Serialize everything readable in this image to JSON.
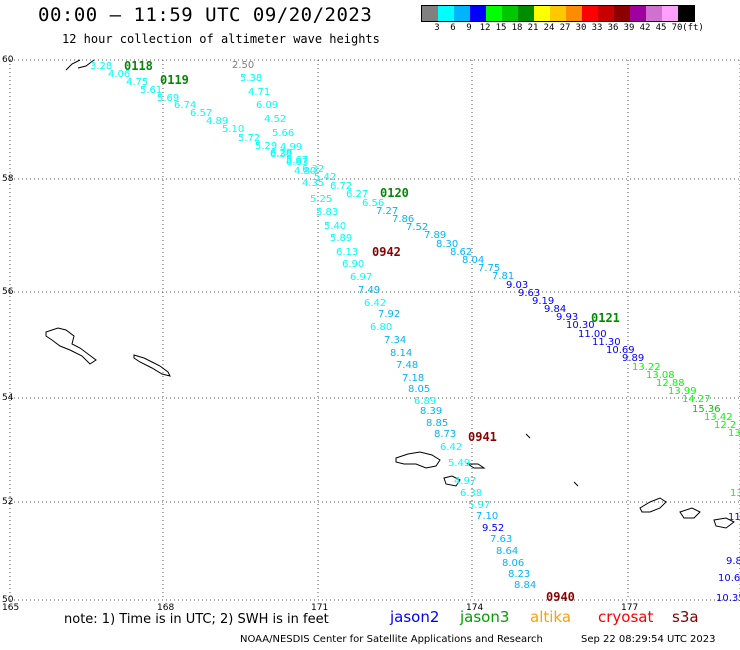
{
  "header": {
    "title": "00:00 — 11:59 UTC 09/20/2023",
    "subtitle": "12 hour collection of altimeter wave heights"
  },
  "legend": {
    "unit": "(ft)",
    "labels": [
      "3",
      "6",
      "9",
      "12",
      "15",
      "18",
      "21",
      "24",
      "27",
      "30",
      "33",
      "36",
      "39",
      "42",
      "45",
      "70"
    ],
    "colors": [
      "#808080",
      "#00ffff",
      "#00b4ff",
      "#0000ff",
      "#00ff00",
      "#00c800",
      "#008c00",
      "#ffff00",
      "#ffc800",
      "#ff8c00",
      "#ff0000",
      "#c80000",
      "#8c0000",
      "#a000a0",
      "#d070d0",
      "#ffa0ff",
      "#000000"
    ]
  },
  "axes": {
    "lat_labels": [
      "60",
      "58",
      "56",
      "54",
      "52",
      "50"
    ],
    "lon_labels": [
      "165",
      "168",
      "171",
      "174",
      "177"
    ]
  },
  "passes": [
    {
      "label": "0118",
      "color": "#008c00"
    },
    {
      "label": "0119",
      "color": "#008c00"
    },
    {
      "label": "0120",
      "color": "#008c00"
    },
    {
      "label": "0121",
      "color": "#008c00"
    },
    {
      "label": "0942",
      "color": "#8c0000"
    },
    {
      "label": "0941",
      "color": "#8c0000"
    },
    {
      "label": "0940",
      "color": "#8c0000"
    }
  ],
  "points": {
    "track_a": [
      {
        "v": "3.28",
        "c": "#00ffff"
      },
      {
        "v": "4.06",
        "c": "#00ffff"
      },
      {
        "v": "4.75",
        "c": "#00ffff"
      },
      {
        "v": "5.61",
        "c": "#00ffff"
      },
      {
        "v": "5.69",
        "c": "#00ffff"
      },
      {
        "v": "6.74",
        "c": "#00ffff"
      },
      {
        "v": "6.57",
        "c": "#00ffff"
      },
      {
        "v": "4.89",
        "c": "#00ffff"
      },
      {
        "v": "5.10",
        "c": "#00ffff"
      },
      {
        "v": "5.72",
        "c": "#00ffff"
      },
      {
        "v": "5.29",
        "c": "#00ffff"
      },
      {
        "v": "6.39",
        "c": "#00ffff"
      },
      {
        "v": "6.63",
        "c": "#00ffff"
      },
      {
        "v": "6.32",
        "c": "#00ffff"
      },
      {
        "v": "5.42",
        "c": "#00ffff"
      },
      {
        "v": "6.72",
        "c": "#00ffff"
      },
      {
        "v": "6.27",
        "c": "#00ffff"
      },
      {
        "v": "6.56",
        "c": "#00ffff"
      },
      {
        "v": "7.27",
        "c": "#00b4ff"
      },
      {
        "v": "7.86",
        "c": "#00b4ff"
      },
      {
        "v": "7.52",
        "c": "#00b4ff"
      },
      {
        "v": "7.89",
        "c": "#00b4ff"
      },
      {
        "v": "8.30",
        "c": "#00b4ff"
      },
      {
        "v": "8.62",
        "c": "#00b4ff"
      },
      {
        "v": "8.04",
        "c": "#00b4ff"
      },
      {
        "v": "7.75",
        "c": "#00b4ff"
      },
      {
        "v": "7.81",
        "c": "#00b4ff"
      },
      {
        "v": "9.03",
        "c": "#0000ff"
      },
      {
        "v": "9.63",
        "c": "#0000ff"
      },
      {
        "v": "9.19",
        "c": "#0000ff"
      },
      {
        "v": "9.84",
        "c": "#0000ff"
      },
      {
        "v": "9.93",
        "c": "#0000ff"
      },
      {
        "v": "10.30",
        "c": "#0000ff"
      },
      {
        "v": "11.00",
        "c": "#0000ff"
      },
      {
        "v": "11.30",
        "c": "#0000ff"
      },
      {
        "v": "10.69",
        "c": "#0000ff"
      },
      {
        "v": "9.89",
        "c": "#0000ff"
      },
      {
        "v": "13.22",
        "c": "#00ff00"
      },
      {
        "v": "13.08",
        "c": "#00ff00"
      },
      {
        "v": "12.88",
        "c": "#00ff00"
      },
      {
        "v": "13.99",
        "c": "#00ff00"
      },
      {
        "v": "14.27",
        "c": "#00ff00"
      },
      {
        "v": "15.36",
        "c": "#00c800"
      },
      {
        "v": "13.42",
        "c": "#00ff00"
      },
      {
        "v": "12.2",
        "c": "#00ff00"
      },
      {
        "v": "13",
        "c": "#00ff00"
      }
    ],
    "track_b": [
      {
        "v": "2.50",
        "c": "#808080"
      },
      {
        "v": "5.38",
        "c": "#00ffff"
      },
      {
        "v": "4.71",
        "c": "#00ffff"
      },
      {
        "v": "6.09",
        "c": "#00ffff"
      },
      {
        "v": "4.52",
        "c": "#00ffff"
      },
      {
        "v": "5.66",
        "c": "#00ffff"
      },
      {
        "v": "4.99",
        "c": "#00ffff"
      },
      {
        "v": "6.28",
        "c": "#00ffff"
      },
      {
        "v": "5.67",
        "c": "#00ffff"
      },
      {
        "v": "4.80",
        "c": "#00ffff"
      },
      {
        "v": "4.35",
        "c": "#00ffff"
      },
      {
        "v": "5.25",
        "c": "#00ffff"
      },
      {
        "v": "5.83",
        "c": "#00ffff"
      },
      {
        "v": "5.40",
        "c": "#00ffff"
      },
      {
        "v": "5.89",
        "c": "#00ffff"
      },
      {
        "v": "6.13",
        "c": "#00ffff"
      },
      {
        "v": "6.90",
        "c": "#00ffff"
      },
      {
        "v": "6.97",
        "c": "#00ffff"
      },
      {
        "v": "7.49",
        "c": "#00b4ff"
      },
      {
        "v": "6.42",
        "c": "#00ffff"
      },
      {
        "v": "6.80",
        "c": "#00ffff"
      },
      {
        "v": "7.92",
        "c": "#00b4ff"
      },
      {
        "v": "7.34",
        "c": "#00b4ff"
      },
      {
        "v": "8.14",
        "c": "#00b4ff"
      },
      {
        "v": "7.48",
        "c": "#00b4ff"
      },
      {
        "v": "7.18",
        "c": "#00b4ff"
      },
      {
        "v": "8.05",
        "c": "#00b4ff"
      },
      {
        "v": "6.89",
        "c": "#00ffff"
      },
      {
        "v": "8.39",
        "c": "#00b4ff"
      },
      {
        "v": "8.85",
        "c": "#00b4ff"
      },
      {
        "v": "8.73",
        "c": "#00b4ff"
      },
      {
        "v": "6.42",
        "c": "#00ffff"
      },
      {
        "v": "5.49",
        "c": "#00ffff"
      },
      {
        "v": "4.97",
        "c": "#00ffff"
      },
      {
        "v": "6.38",
        "c": "#00ffff"
      },
      {
        "v": "5.97",
        "c": "#00ffff"
      },
      {
        "v": "7.10",
        "c": "#00b4ff"
      },
      {
        "v": "9.52",
        "c": "#0000ff"
      },
      {
        "v": "7.63",
        "c": "#00b4ff"
      },
      {
        "v": "8.64",
        "c": "#00b4ff"
      },
      {
        "v": "8.06",
        "c": "#00b4ff"
      },
      {
        "v": "8.23",
        "c": "#00b4ff"
      },
      {
        "v": "8.84",
        "c": "#00b4ff"
      }
    ],
    "edge": [
      {
        "v": "11",
        "c": "#0000ff"
      },
      {
        "v": "9.8",
        "c": "#0000ff"
      },
      {
        "v": "10.6",
        "c": "#0000ff"
      },
      {
        "v": "10.35",
        "c": "#0000ff"
      },
      {
        "v": "13",
        "c": "#00ff00"
      }
    ]
  },
  "note": "note: 1) Time is in UTC; 2) SWH is in feet",
  "satellites": [
    {
      "name": "jason2",
      "color": "#0000ff"
    },
    {
      "name": "jason3",
      "color": "#00a000"
    },
    {
      "name": "altika",
      "color": "#ffa000"
    },
    {
      "name": "cryosat",
      "color": "#ff0000"
    },
    {
      "name": "s3a",
      "color": "#800000"
    }
  ],
  "footer": "NOAA/NESDIS Center for Satellite Applications and Research",
  "timestamp": "Sep 22 08:29:54 UTC 2023"
}
